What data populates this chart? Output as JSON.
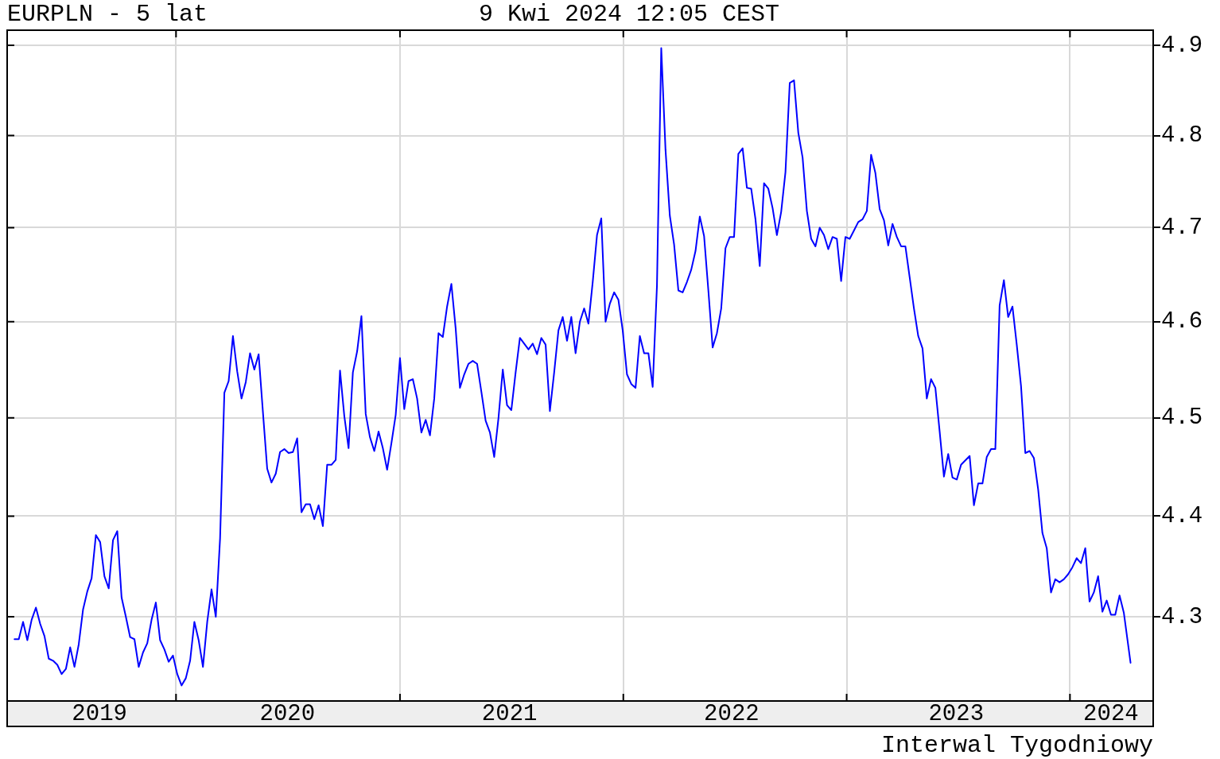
{
  "chart_data": {
    "type": "line",
    "title": "EURPLN - 5 lat",
    "subtitle": "9 Kwi 2024 12:05 CEST",
    "annotations": [
      "Interwal Tygodniowy"
    ],
    "x": [
      "2019-04-12",
      "2019-04-19",
      "2019-04-26",
      "2019-05-03",
      "2019-05-10",
      "2019-05-17",
      "2019-05-24",
      "2019-05-31",
      "2019-06-07",
      "2019-06-14",
      "2019-06-21",
      "2019-06-28",
      "2019-07-05",
      "2019-07-12",
      "2019-07-19",
      "2019-07-26",
      "2019-08-02",
      "2019-08-09",
      "2019-08-16",
      "2019-08-23",
      "2019-08-30",
      "2019-09-06",
      "2019-09-13",
      "2019-09-20",
      "2019-09-27",
      "2019-10-04",
      "2019-10-11",
      "2019-10-18",
      "2019-10-25",
      "2019-11-01",
      "2019-11-08",
      "2019-11-15",
      "2019-11-22",
      "2019-11-29",
      "2019-12-06",
      "2019-12-13",
      "2019-12-20",
      "2019-12-27",
      "2020-01-03",
      "2020-01-10",
      "2020-01-17",
      "2020-01-24",
      "2020-01-31",
      "2020-02-07",
      "2020-02-14",
      "2020-02-21",
      "2020-02-28",
      "2020-03-06",
      "2020-03-13",
      "2020-03-20",
      "2020-03-27",
      "2020-04-03",
      "2020-04-10",
      "2020-04-17",
      "2020-04-24",
      "2020-05-01",
      "2020-05-08",
      "2020-05-15",
      "2020-05-22",
      "2020-05-29",
      "2020-06-05",
      "2020-06-12",
      "2020-06-19",
      "2020-06-26",
      "2020-07-03",
      "2020-07-10",
      "2020-07-17",
      "2020-07-24",
      "2020-07-31",
      "2020-08-07",
      "2020-08-14",
      "2020-08-21",
      "2020-08-28",
      "2020-09-04",
      "2020-09-11",
      "2020-09-18",
      "2020-09-25",
      "2020-10-02",
      "2020-10-09",
      "2020-10-16",
      "2020-10-23",
      "2020-10-30",
      "2020-11-06",
      "2020-11-13",
      "2020-11-20",
      "2020-11-27",
      "2020-12-04",
      "2020-12-11",
      "2020-12-18",
      "2020-12-25",
      "2021-01-01",
      "2021-01-08",
      "2021-01-15",
      "2021-01-22",
      "2021-01-29",
      "2021-02-05",
      "2021-02-12",
      "2021-02-19",
      "2021-02-26",
      "2021-03-05",
      "2021-03-12",
      "2021-03-19",
      "2021-03-26",
      "2021-04-02",
      "2021-04-09",
      "2021-04-16",
      "2021-04-23",
      "2021-04-30",
      "2021-05-07",
      "2021-05-14",
      "2021-05-21",
      "2021-05-28",
      "2021-06-04",
      "2021-06-11",
      "2021-06-18",
      "2021-06-25",
      "2021-07-02",
      "2021-07-09",
      "2021-07-16",
      "2021-07-23",
      "2021-07-30",
      "2021-08-06",
      "2021-08-13",
      "2021-08-20",
      "2021-08-27",
      "2021-09-03",
      "2021-09-10",
      "2021-09-17",
      "2021-09-24",
      "2021-10-01",
      "2021-10-08",
      "2021-10-15",
      "2021-10-22",
      "2021-10-29",
      "2021-11-05",
      "2021-11-12",
      "2021-11-19",
      "2021-11-26",
      "2021-12-03",
      "2021-12-10",
      "2021-12-17",
      "2021-12-24",
      "2021-12-31",
      "2022-01-07",
      "2022-01-14",
      "2022-01-21",
      "2022-01-28",
      "2022-02-04",
      "2022-02-11",
      "2022-02-18",
      "2022-02-25",
      "2022-03-04",
      "2022-03-11",
      "2022-03-18",
      "2022-03-25",
      "2022-04-01",
      "2022-04-08",
      "2022-04-15",
      "2022-04-22",
      "2022-04-29",
      "2022-05-06",
      "2022-05-13",
      "2022-05-20",
      "2022-05-27",
      "2022-06-03",
      "2022-06-10",
      "2022-06-17",
      "2022-06-24",
      "2022-07-01",
      "2022-07-08",
      "2022-07-15",
      "2022-07-22",
      "2022-07-29",
      "2022-08-05",
      "2022-08-12",
      "2022-08-19",
      "2022-08-26",
      "2022-09-02",
      "2022-09-09",
      "2022-09-16",
      "2022-09-23",
      "2022-09-30",
      "2022-10-07",
      "2022-10-14",
      "2022-10-21",
      "2022-10-28",
      "2022-11-04",
      "2022-11-11",
      "2022-11-18",
      "2022-11-25",
      "2022-12-02",
      "2022-12-09",
      "2022-12-16",
      "2022-12-23",
      "2022-12-30",
      "2023-01-06",
      "2023-01-13",
      "2023-01-20",
      "2023-01-27",
      "2023-02-03",
      "2023-02-10",
      "2023-02-17",
      "2023-02-24",
      "2023-03-03",
      "2023-03-10",
      "2023-03-17",
      "2023-03-24",
      "2023-03-31",
      "2023-04-07",
      "2023-04-14",
      "2023-04-21",
      "2023-04-28",
      "2023-05-05",
      "2023-05-12",
      "2023-05-19",
      "2023-05-26",
      "2023-06-02",
      "2023-06-09",
      "2023-06-16",
      "2023-06-23",
      "2023-06-30",
      "2023-07-07",
      "2023-07-21",
      "2023-07-28",
      "2023-08-04",
      "2023-08-11",
      "2023-08-18",
      "2023-08-25",
      "2023-09-01",
      "2023-09-08",
      "2023-09-15",
      "2023-09-22",
      "2023-09-29",
      "2023-10-06",
      "2023-10-13",
      "2023-10-20",
      "2023-10-27",
      "2023-11-03",
      "2023-11-10",
      "2023-11-17",
      "2023-11-24",
      "2023-12-01",
      "2023-12-08",
      "2023-12-15",
      "2023-12-22",
      "2023-12-29",
      "2024-01-05",
      "2024-01-12",
      "2024-01-19",
      "2024-01-26",
      "2024-02-02",
      "2024-02-09",
      "2024-02-16",
      "2024-02-23",
      "2024-03-01",
      "2024-03-08",
      "2024-03-15",
      "2024-03-22",
      "2024-03-29",
      "2024-04-09"
    ],
    "values": [
      4.278,
      4.278,
      4.295,
      4.277,
      4.297,
      4.309,
      4.293,
      4.281,
      4.259,
      4.257,
      4.253,
      4.244,
      4.249,
      4.27,
      4.251,
      4.273,
      4.307,
      4.325,
      4.338,
      4.381,
      4.374,
      4.34,
      4.328,
      4.376,
      4.385,
      4.319,
      4.3,
      4.28,
      4.278,
      4.251,
      4.265,
      4.274,
      4.297,
      4.314,
      4.277,
      4.268,
      4.256,
      4.262,
      4.244,
      4.233,
      4.24,
      4.257,
      4.295,
      4.277,
      4.251,
      4.295,
      4.327,
      4.3,
      4.378,
      4.526,
      4.538,
      4.585,
      4.548,
      4.52,
      4.537,
      4.567,
      4.55,
      4.566,
      4.506,
      4.448,
      4.434,
      4.443,
      4.465,
      4.468,
      4.464,
      4.465,
      4.479,
      4.404,
      4.412,
      4.412,
      4.397,
      4.411,
      4.39,
      4.452,
      4.452,
      4.457,
      4.549,
      4.502,
      4.469,
      4.547,
      4.569,
      4.606,
      4.504,
      4.48,
      4.466,
      4.486,
      4.469,
      4.447,
      4.474,
      4.503,
      4.562,
      4.509,
      4.538,
      4.54,
      4.52,
      4.485,
      4.498,
      4.482,
      4.52,
      4.588,
      4.584,
      4.616,
      4.64,
      4.593,
      4.531,
      4.545,
      4.556,
      4.559,
      4.556,
      4.527,
      4.497,
      4.485,
      4.46,
      4.5,
      4.55,
      4.513,
      4.508,
      4.547,
      4.583,
      4.577,
      4.571,
      4.577,
      4.566,
      4.583,
      4.576,
      4.507,
      4.547,
      4.591,
      4.605,
      4.58,
      4.605,
      4.567,
      4.6,
      4.614,
      4.598,
      4.642,
      4.692,
      4.71,
      4.6,
      4.619,
      4.631,
      4.623,
      4.591,
      4.545,
      4.535,
      4.531,
      4.585,
      4.567,
      4.567,
      4.532,
      4.638,
      4.897,
      4.784,
      4.713,
      4.682,
      4.633,
      4.631,
      4.642,
      4.655,
      4.675,
      4.712,
      4.691,
      4.633,
      4.573,
      4.588,
      4.614,
      4.678,
      4.69,
      4.69,
      4.78,
      4.786,
      4.743,
      4.742,
      4.709,
      4.659,
      4.748,
      4.742,
      4.721,
      4.692,
      4.717,
      4.76,
      4.858,
      4.861,
      4.803,
      4.776,
      4.718,
      4.688,
      4.68,
      4.7,
      4.692,
      4.677,
      4.69,
      4.688,
      4.643,
      4.69,
      4.688,
      4.697,
      4.706,
      4.709,
      4.718,
      4.779,
      4.759,
      4.72,
      4.708,
      4.681,
      4.704,
      4.69,
      4.68,
      4.68,
      4.647,
      4.614,
      4.585,
      4.572,
      4.52,
      4.54,
      4.531,
      4.486,
      4.44,
      4.463,
      4.439,
      4.437,
      4.452,
      4.461,
      4.411,
      4.433,
      4.433,
      4.46,
      4.468,
      4.468,
      4.617,
      4.644,
      4.605,
      4.616,
      4.576,
      4.533,
      4.464,
      4.466,
      4.459,
      4.427,
      4.383,
      4.368,
      4.324,
      4.337,
      4.334,
      4.337,
      4.342,
      4.349,
      4.358,
      4.353,
      4.368,
      4.315,
      4.324,
      4.34,
      4.305,
      4.316,
      4.302,
      4.302,
      4.321,
      4.304,
      4.255
    ],
    "color": "#0000ff",
    "marker": "none",
    "line_style": "solid",
    "xlim": [
      "2019-03-31",
      "2024-05-16"
    ],
    "xticks": [
      {
        "value": "2019-08-29",
        "label": "2019"
      },
      {
        "value": "2020-01-01",
        "label": null
      },
      {
        "value": "2020-07-01",
        "label": "2020"
      },
      {
        "value": "2021-01-01",
        "label": null
      },
      {
        "value": "2021-06-29",
        "label": "2021"
      },
      {
        "value": "2022-01-01",
        "label": null
      },
      {
        "value": "2022-06-27",
        "label": "2022"
      },
      {
        "value": "2023-01-01",
        "label": null
      },
      {
        "value": "2023-06-29",
        "label": "2023"
      },
      {
        "value": "2024-01-01",
        "label": null
      },
      {
        "value": "2024-03-08",
        "label": "2024"
      }
    ],
    "ylim": [
      4.218,
      4.917
    ],
    "yticks": [
      4.3,
      4.4,
      4.5,
      4.6,
      4.7,
      4.8,
      4.9
    ],
    "log": true,
    "grid": true
  }
}
